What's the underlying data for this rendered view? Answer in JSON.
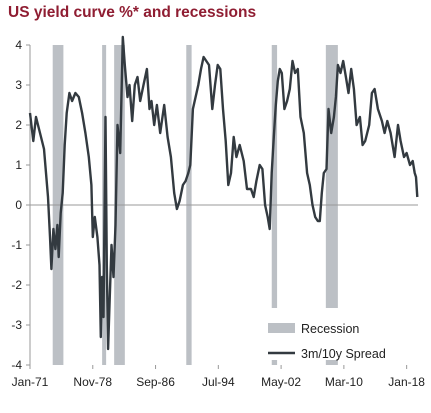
{
  "chart_data": {
    "type": "line",
    "title": "US yield curve %* and recessions",
    "xlabel": "",
    "ylabel": "",
    "ylim": [
      -4,
      4
    ],
    "yticks": [
      4,
      3,
      2,
      1,
      0,
      -1,
      -2,
      -3,
      -4
    ],
    "xlim": [
      "1971-01",
      "2019-06"
    ],
    "xticks": [
      {
        "label": "Jan-71",
        "date": "1971-01"
      },
      {
        "label": "Nov-78",
        "date": "1978-11"
      },
      {
        "label": "Sep-86",
        "date": "1986-09"
      },
      {
        "label": "Jul-94",
        "date": "1994-07"
      },
      {
        "label": "May-02",
        "date": "2002-05"
      },
      {
        "label": "Mar-10",
        "date": "2010-03"
      },
      {
        "label": "Jan-18",
        "date": "2018-01"
      }
    ],
    "grid": false,
    "legend_position": "bottom-right",
    "series": [
      {
        "name": "3m/10y Spread",
        "color": "#333a40",
        "points": [
          [
            "1971-01",
            2.3
          ],
          [
            "1971-06",
            1.6
          ],
          [
            "1971-10",
            2.2
          ],
          [
            "1972-04",
            1.8
          ],
          [
            "1972-10",
            1.4
          ],
          [
            "1973-01",
            0.8
          ],
          [
            "1973-04",
            0.2
          ],
          [
            "1973-07",
            -0.8
          ],
          [
            "1973-09",
            -1.6
          ],
          [
            "1973-12",
            -0.6
          ],
          [
            "1974-03",
            -1.1
          ],
          [
            "1974-06",
            -0.5
          ],
          [
            "1974-08",
            -1.3
          ],
          [
            "1974-11",
            -0.2
          ],
          [
            "1975-02",
            0.3
          ],
          [
            "1975-05",
            1.5
          ],
          [
            "1975-08",
            2.3
          ],
          [
            "1975-12",
            2.8
          ],
          [
            "1976-04",
            2.6
          ],
          [
            "1976-09",
            2.8
          ],
          [
            "1977-02",
            2.7
          ],
          [
            "1977-07",
            2.3
          ],
          [
            "1977-12",
            1.8
          ],
          [
            "1978-05",
            1.2
          ],
          [
            "1978-09",
            0.5
          ],
          [
            "1978-11",
            -0.8
          ],
          [
            "1979-02",
            -0.3
          ],
          [
            "1979-06",
            -0.8
          ],
          [
            "1979-09",
            -1.5
          ],
          [
            "1979-11",
            -3.3
          ],
          [
            "1980-01",
            -1.8
          ],
          [
            "1980-03",
            -2.8
          ],
          [
            "1980-05",
            0.5
          ],
          [
            "1980-06",
            2.2
          ],
          [
            "1980-08",
            -1.5
          ],
          [
            "1980-10",
            -3.6
          ],
          [
            "1980-12",
            -2.5
          ],
          [
            "1981-03",
            -1.0
          ],
          [
            "1981-06",
            -1.8
          ],
          [
            "1981-09",
            -0.5
          ],
          [
            "1981-12",
            2.0
          ],
          [
            "1982-04",
            1.3
          ],
          [
            "1982-08",
            4.2
          ],
          [
            "1982-11",
            3.5
          ],
          [
            "1983-03",
            2.7
          ],
          [
            "1983-06",
            3.0
          ],
          [
            "1983-10",
            2.1
          ],
          [
            "1984-02",
            3.0
          ],
          [
            "1984-06",
            3.2
          ],
          [
            "1984-10",
            2.6
          ],
          [
            "1985-03",
            3.0
          ],
          [
            "1985-08",
            3.4
          ],
          [
            "1985-12",
            2.4
          ],
          [
            "1986-03",
            2.6
          ],
          [
            "1986-07",
            2.0
          ],
          [
            "1986-11",
            2.5
          ],
          [
            "1987-04",
            1.8
          ],
          [
            "1987-10",
            2.5
          ],
          [
            "1988-03",
            1.7
          ],
          [
            "1988-08",
            1.2
          ],
          [
            "1989-01",
            0.3
          ],
          [
            "1989-05",
            -0.1
          ],
          [
            "1989-09",
            0.1
          ],
          [
            "1990-02",
            0.5
          ],
          [
            "1990-06",
            0.6
          ],
          [
            "1990-10",
            0.8
          ],
          [
            "1991-01",
            1.0
          ],
          [
            "1991-05",
            2.4
          ],
          [
            "1991-09",
            2.7
          ],
          [
            "1992-01",
            3.0
          ],
          [
            "1992-05",
            3.4
          ],
          [
            "1992-09",
            3.7
          ],
          [
            "1993-01",
            3.6
          ],
          [
            "1993-05",
            3.5
          ],
          [
            "1993-10",
            2.4
          ],
          [
            "1994-02",
            3.0
          ],
          [
            "1994-06",
            3.5
          ],
          [
            "1994-10",
            3.4
          ],
          [
            "1995-02",
            2.4
          ],
          [
            "1995-06",
            1.6
          ],
          [
            "1995-10",
            0.5
          ],
          [
            "1996-02",
            0.8
          ],
          [
            "1996-06",
            1.7
          ],
          [
            "1996-10",
            1.2
          ],
          [
            "1997-03",
            1.5
          ],
          [
            "1997-09",
            1.1
          ],
          [
            "1998-02",
            0.4
          ],
          [
            "1998-08",
            0.4
          ],
          [
            "1998-12",
            0.2
          ],
          [
            "1999-04",
            0.6
          ],
          [
            "1999-09",
            1.0
          ],
          [
            "2000-01",
            0.9
          ],
          [
            "2000-05",
            0.0
          ],
          [
            "2000-09",
            -0.3
          ],
          [
            "2000-12",
            -0.6
          ],
          [
            "2001-03",
            0.8
          ],
          [
            "2001-06",
            1.7
          ],
          [
            "2001-09",
            2.5
          ],
          [
            "2001-12",
            3.1
          ],
          [
            "2002-03",
            3.4
          ],
          [
            "2002-06",
            3.3
          ],
          [
            "2002-10",
            2.4
          ],
          [
            "2003-02",
            2.6
          ],
          [
            "2003-06",
            2.9
          ],
          [
            "2003-10",
            3.6
          ],
          [
            "2004-02",
            3.3
          ],
          [
            "2004-06",
            3.4
          ],
          [
            "2004-10",
            2.2
          ],
          [
            "2005-03",
            1.8
          ],
          [
            "2005-08",
            0.8
          ],
          [
            "2005-12",
            0.5
          ],
          [
            "2006-04",
            0.0
          ],
          [
            "2006-08",
            -0.3
          ],
          [
            "2006-12",
            -0.4
          ],
          [
            "2007-03",
            -0.4
          ],
          [
            "2007-06",
            0.3
          ],
          [
            "2007-09",
            0.8
          ],
          [
            "2008-01",
            0.9
          ],
          [
            "2008-04",
            2.4
          ],
          [
            "2008-08",
            1.8
          ],
          [
            "2008-12",
            2.2
          ],
          [
            "2009-03",
            2.7
          ],
          [
            "2009-06",
            3.5
          ],
          [
            "2009-10",
            3.3
          ],
          [
            "2010-02",
            3.6
          ],
          [
            "2010-06",
            3.2
          ],
          [
            "2010-10",
            2.8
          ],
          [
            "2011-02",
            3.4
          ],
          [
            "2011-06",
            2.9
          ],
          [
            "2011-10",
            2.0
          ],
          [
            "2012-03",
            2.2
          ],
          [
            "2012-07",
            1.5
          ],
          [
            "2012-11",
            1.6
          ],
          [
            "2013-05",
            2.0
          ],
          [
            "2013-09",
            2.8
          ],
          [
            "2014-01",
            2.9
          ],
          [
            "2014-06",
            2.4
          ],
          [
            "2014-12",
            2.1
          ],
          [
            "2015-04",
            1.8
          ],
          [
            "2015-08",
            2.1
          ],
          [
            "2016-01",
            1.8
          ],
          [
            "2016-07",
            1.2
          ],
          [
            "2016-12",
            2.0
          ],
          [
            "2017-04",
            1.6
          ],
          [
            "2017-09",
            1.2
          ],
          [
            "2018-01",
            1.3
          ],
          [
            "2018-06",
            1.0
          ],
          [
            "2018-10",
            1.1
          ],
          [
            "2019-01",
            0.8
          ],
          [
            "2019-03",
            0.7
          ],
          [
            "2019-05",
            0.2
          ]
        ]
      }
    ],
    "recessions": [
      {
        "start": "1973-11",
        "end": "1975-03"
      },
      {
        "start": "1980-01",
        "end": "1980-07"
      },
      {
        "start": "1981-07",
        "end": "1982-11"
      },
      {
        "start": "1990-07",
        "end": "1991-03"
      },
      {
        "start": "2001-03",
        "end": "2001-11"
      },
      {
        "start": "2007-12",
        "end": "2009-06"
      }
    ],
    "legend": [
      {
        "label": "Recession",
        "marker": "band",
        "color": "#bcc0c5"
      },
      {
        "label": "3m/10y Spread",
        "marker": "line",
        "color": "#333a40"
      }
    ]
  }
}
